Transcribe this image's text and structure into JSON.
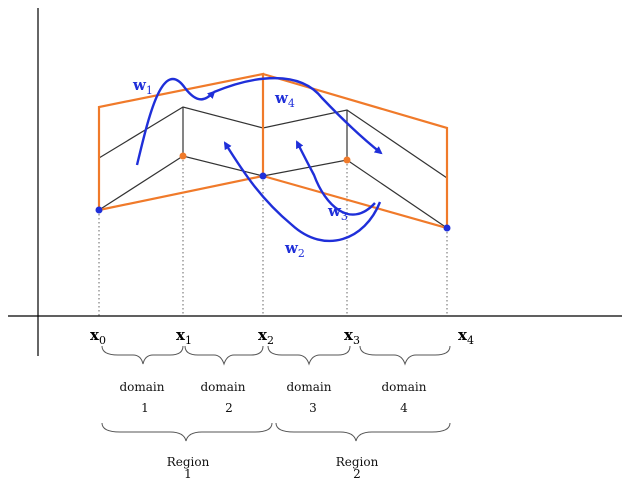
{
  "colors": {
    "orange": "#f07a2a",
    "blue": "#1f2fd9",
    "gray": "#333333",
    "axis": "#000000"
  },
  "x_labels": [
    {
      "base": "x",
      "sub": "0"
    },
    {
      "base": "x",
      "sub": "1"
    },
    {
      "base": "x",
      "sub": "2"
    },
    {
      "base": "x",
      "sub": "3"
    },
    {
      "base": "x",
      "sub": "4"
    }
  ],
  "w_labels": [
    {
      "base": "w",
      "sub": "1"
    },
    {
      "base": "w",
      "sub": "2"
    },
    {
      "base": "w",
      "sub": "3"
    },
    {
      "base": "w",
      "sub": "4"
    }
  ],
  "domains": [
    {
      "word": "domain",
      "num": "1"
    },
    {
      "word": "domain",
      "num": "2"
    },
    {
      "word": "domain",
      "num": "3"
    },
    {
      "word": "domain",
      "num": "4"
    }
  ],
  "regions": [
    {
      "word": "Region",
      "num": "1"
    },
    {
      "word": "Region",
      "num": "2"
    }
  ]
}
